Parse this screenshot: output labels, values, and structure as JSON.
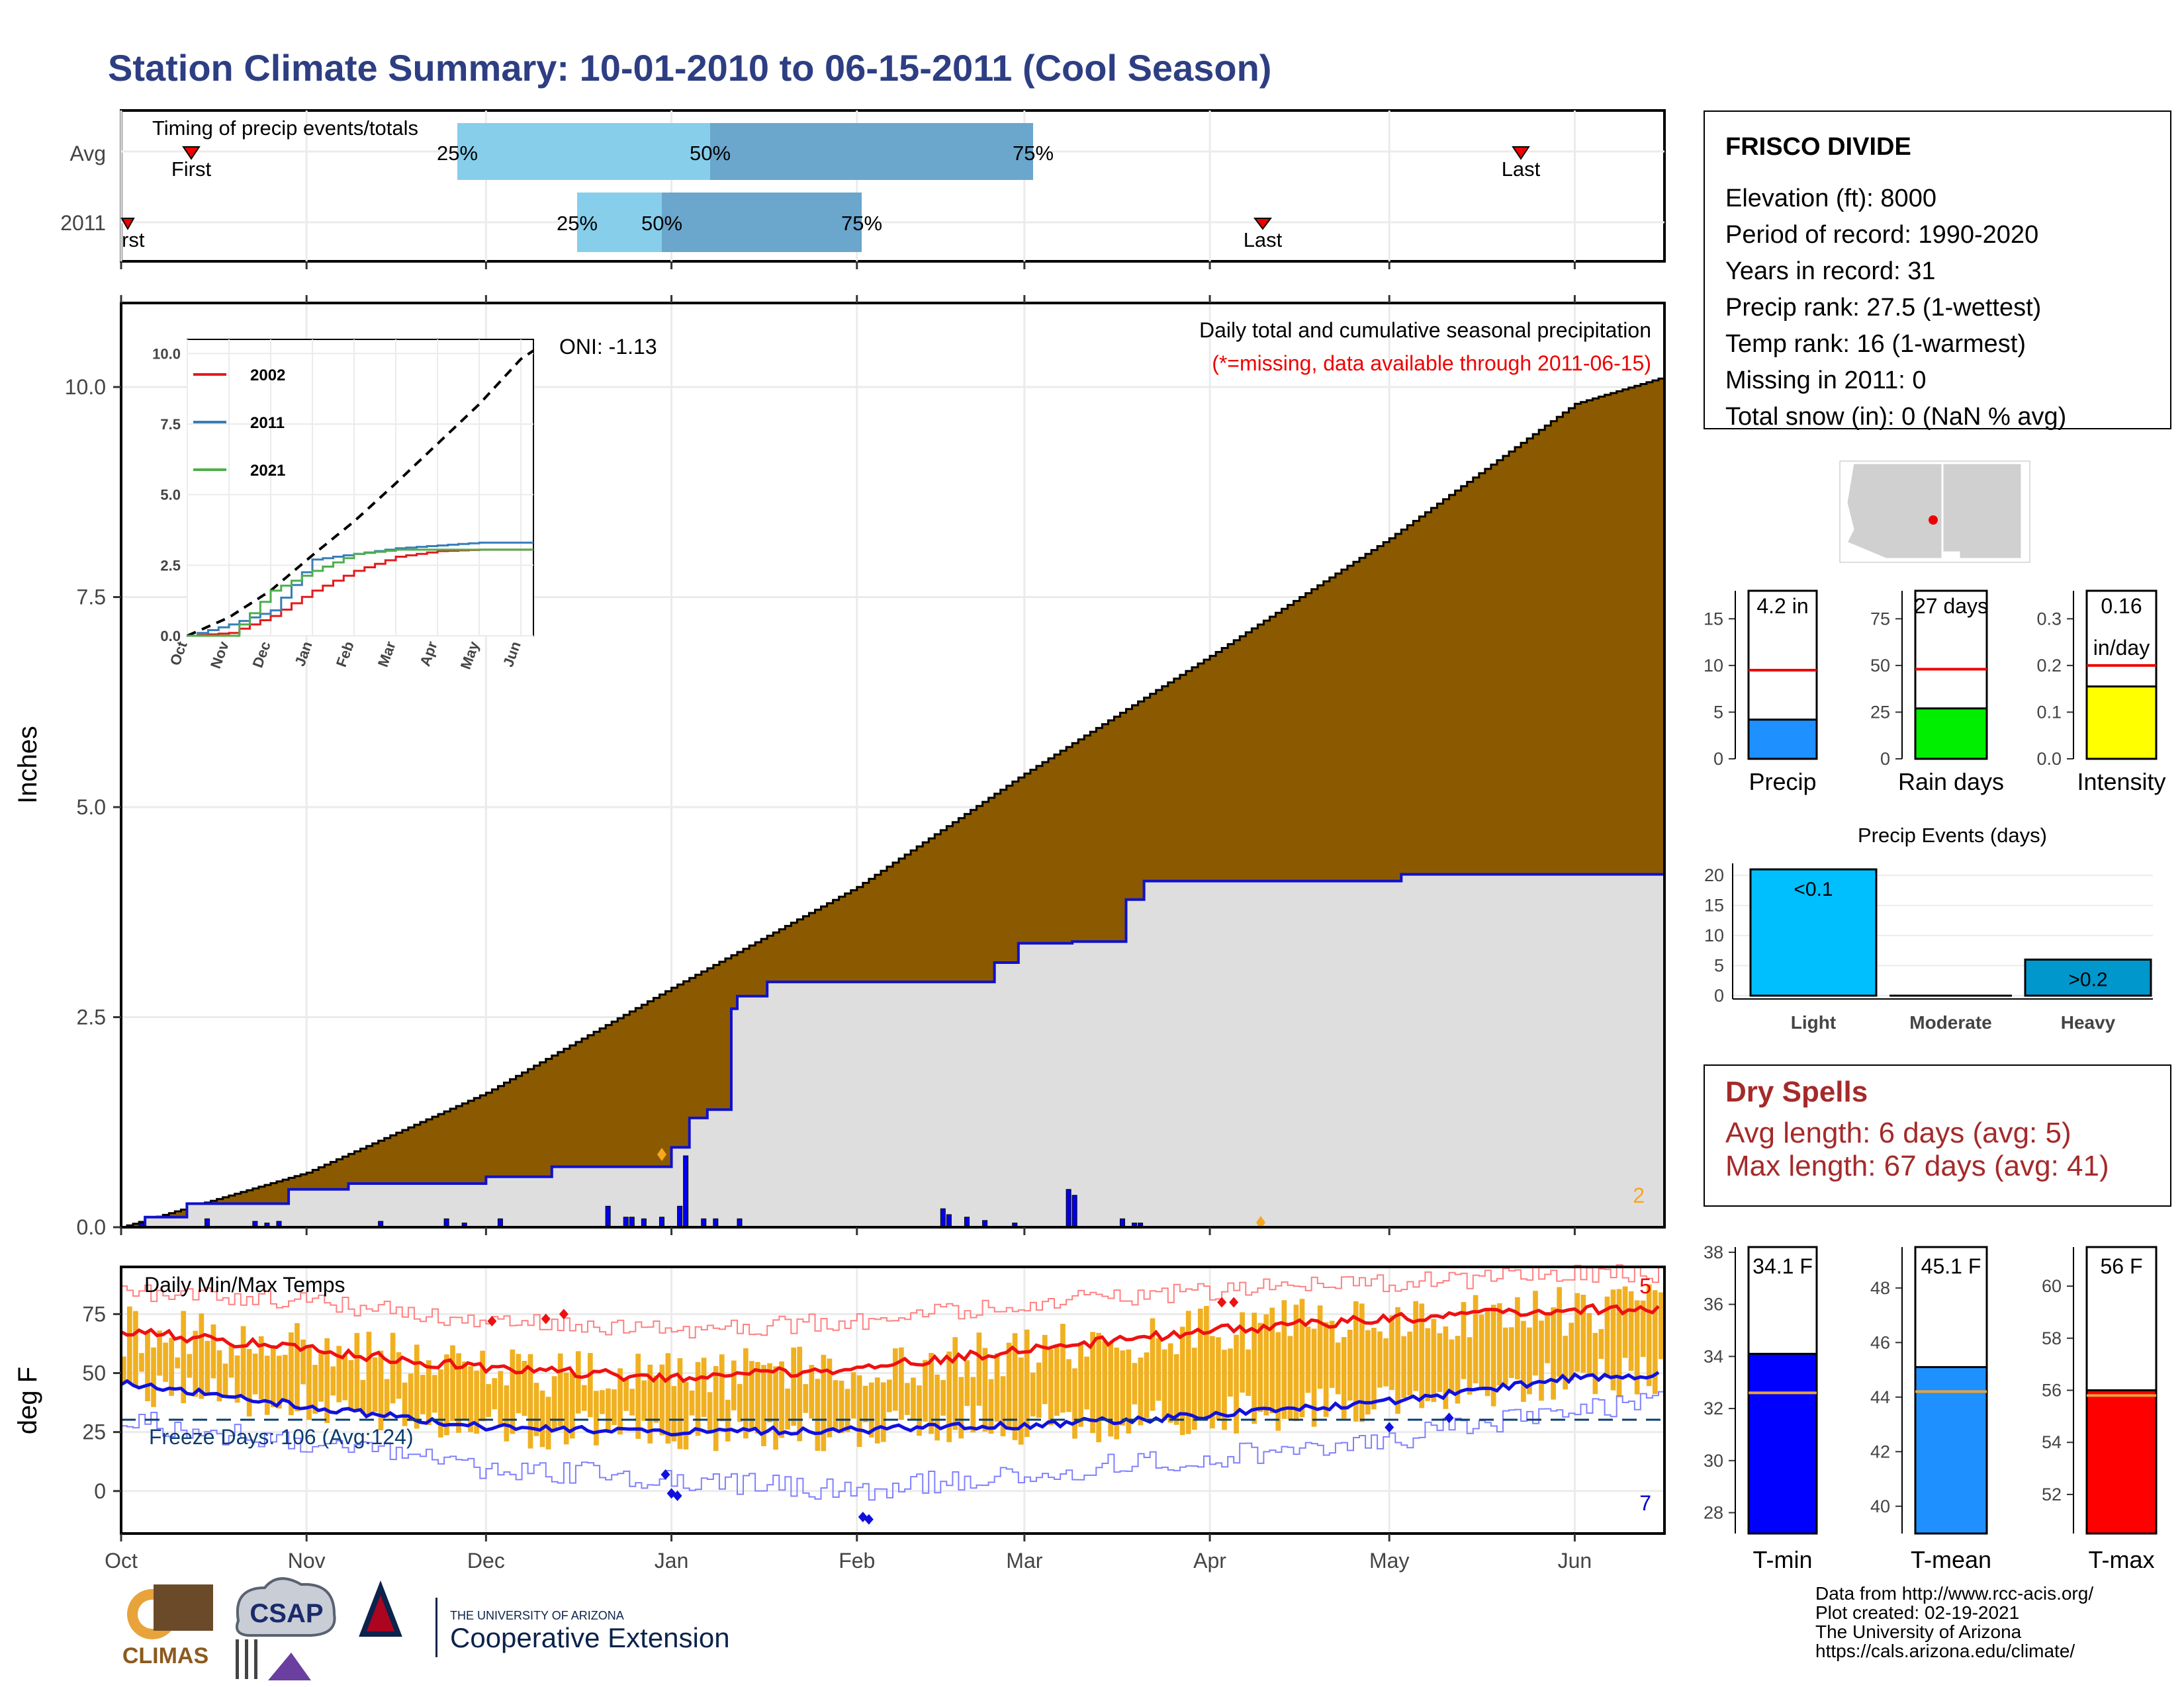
{
  "title": "Station Climate Summary: 10-01-2010 to 06-15-2011 (Cool Season)",
  "months": [
    "Oct",
    "Nov",
    "Dec",
    "Jan",
    "Feb",
    "Mar",
    "Apr",
    "May",
    "Jun"
  ],
  "timing": {
    "label": "Timing of precip events/totals",
    "rows": [
      "Avg",
      "2011"
    ],
    "avg": {
      "first": "First",
      "last": "Last",
      "q25": "25%",
      "q50": "50%",
      "q75": "75%"
    },
    "y2011": {
      "first": "rst",
      "last": "Last",
      "q25": "25%",
      "q50": "50%",
      "q75": "75%"
    }
  },
  "precip": {
    "ylabel": "Inches",
    "yticks": [
      "0.0",
      "2.5",
      "5.0",
      "7.5",
      "10.0"
    ],
    "oni": "ONI: -1.13",
    "note1": "Daily total and cumulative seasonal precipitation",
    "note2": "(*=missing, data available through 2011-06-15)",
    "count_label": "2",
    "colors": {
      "avg_fill": "#8B5A00",
      "obs_fill": "#DEDEDE",
      "obs_line": "#1010CC",
      "bars": "#0000EE",
      "marker": "#F5A623"
    }
  },
  "inset": {
    "yticks": [
      "0.0",
      "2.5",
      "5.0",
      "7.5",
      "10.0"
    ],
    "xticks": [
      "Oct",
      "Nov",
      "Dec",
      "Jan",
      "Feb",
      "Mar",
      "Apr",
      "May",
      "Jun"
    ],
    "legend": [
      {
        "label": "2002",
        "color": "#E41A1C"
      },
      {
        "label": "2011",
        "color": "#377EB8"
      },
      {
        "label": "2021",
        "color": "#4DAF4A"
      }
    ]
  },
  "temps": {
    "ylabel": "deg F",
    "title": "Daily Min/Max Temps",
    "yticks": [
      "0",
      "25",
      "50",
      "75"
    ],
    "freeze": "Freeze Days: 106 (Avg:124)",
    "record_high_count": "5",
    "record_low_count": "7",
    "colors": {
      "bars": "#F0B020",
      "tmax": "#EE1111",
      "tmin": "#1111DD"
    }
  },
  "station": {
    "name": "FRISCO DIVIDE",
    "lines": [
      "Elevation (ft): 8000",
      "Period of record: 1990-2020",
      "Years in record: 31",
      "Precip rank: 27.5 (1-wettest)",
      "Temp rank: 16 (1-warmest)",
      "Missing in 2011: 0",
      "Total snow (in): 0 (NaN % avg)"
    ]
  },
  "gauges": {
    "precip": {
      "value_label": "4.2 in",
      "name": "Precip",
      "yticks": [
        "0",
        "5",
        "10",
        "15"
      ],
      "value": 4.2,
      "avg": 9.5,
      "max": 18,
      "color": "#1E90FF"
    },
    "rain_days": {
      "value_label": "27 days",
      "name": "Rain days",
      "yticks": [
        "0",
        "25",
        "50",
        "75"
      ],
      "value": 27,
      "avg": 48,
      "max": 90,
      "color": "#00EE00"
    },
    "intensity": {
      "value_label": "0.16",
      "value_label2": "in/day",
      "name": "Intensity",
      "yticks": [
        "0.0",
        "0.1",
        "0.2",
        "0.3"
      ],
      "value": 0.155,
      "avg": 0.2,
      "max": 0.36,
      "color": "#FFFF00"
    }
  },
  "events": {
    "title": "Precip Events (days)",
    "yticks": [
      "0",
      "5",
      "10",
      "15",
      "20"
    ],
    "categories": [
      "Light",
      "Moderate",
      "Heavy"
    ],
    "labels": [
      "<0.1",
      "",
      ">0.2"
    ],
    "values": [
      21,
      0,
      6
    ],
    "colors": [
      "#00BFFF",
      "#00A0E0",
      "#0097CC"
    ]
  },
  "dry_spells": {
    "title": "Dry Spells",
    "avg": "Avg length: 6 days (avg: 5)",
    "max": "Max length: 67 days (avg: 41)"
  },
  "temp_gauges": {
    "tmin": {
      "value_label": "34.1 F",
      "name": "T-min",
      "yticks": [
        "28",
        "30",
        "32",
        "34",
        "36",
        "38"
      ],
      "value": 34.1,
      "avg": 32.6,
      "min": 27.2,
      "max": 38.2,
      "color": "#0000FF"
    },
    "tmean": {
      "value_label": "45.1 F",
      "name": "T-mean",
      "yticks": [
        "40",
        "42",
        "44",
        "46",
        "48"
      ],
      "value": 45.1,
      "avg": 44.2,
      "min": 39,
      "max": 49.5,
      "color": "#1E90FF"
    },
    "tmax": {
      "value_label": "56 F",
      "name": "T-max",
      "yticks": [
        "52",
        "54",
        "56",
        "58",
        "60"
      ],
      "value": 56,
      "avg": 55.8,
      "min": 50.5,
      "max": 61.5,
      "color": "#FF0000"
    }
  },
  "footer": {
    "lines": [
      "Data from http://www.rcc-acis.org/",
      "Plot created: 02-19-2021",
      "The University of Arizona",
      "https://cals.arizona.edu/climate/"
    ],
    "climas": "CLIMAS",
    "csap": "CSAP",
    "ua_small": "THE UNIVERSITY OF ARIZONA",
    "ua_big": "Cooperative Extension"
  },
  "chart_data": [
    {
      "type": "area",
      "title": "Daily total and cumulative seasonal precipitation",
      "ylabel": "Inches",
      "x": [
        "Oct",
        "Nov",
        "Dec",
        "Jan",
        "Feb",
        "Mar",
        "Apr",
        "May",
        "Jun",
        "Jun 15"
      ],
      "ylim": [
        0,
        11
      ],
      "series": [
        {
          "name": "Average cumulative",
          "values": [
            0,
            0.65,
            1.6,
            2.85,
            4.05,
            5.4,
            6.8,
            8.2,
            9.8,
            10.1
          ]
        },
        {
          "name": "2011 cumulative",
          "values": [
            0,
            0.55,
            0.95,
            2.75,
            2.95,
            3.2,
            4.15,
            4.2,
            4.2,
            4.2
          ]
        }
      ]
    },
    {
      "type": "line",
      "ylim": [
        0,
        10
      ],
      "x": [
        "Oct",
        "Nov",
        "Dec",
        "Jan",
        "Feb",
        "Mar",
        "Apr",
        "May",
        "Jun"
      ],
      "series": [
        {
          "name": "2002",
          "values": [
            0,
            0.1,
            0.7,
            1.6,
            2.3,
            2.8,
            3.0,
            3.05,
            3.05
          ]
        },
        {
          "name": "2011",
          "values": [
            0,
            0.4,
            0.9,
            2.7,
            2.9,
            3.1,
            3.2,
            3.3,
            3.3
          ]
        },
        {
          "name": "2021",
          "values": [
            0,
            0,
            1.6,
            2.3,
            2.9,
            3.05,
            3.05,
            3.05,
            3.05
          ]
        }
      ]
    },
    {
      "type": "line",
      "title": "Daily Min/Max Temps",
      "ylabel": "deg F",
      "x": [
        "Oct",
        "Nov",
        "Dec",
        "Jan",
        "Feb",
        "Mar",
        "Apr",
        "May",
        "Jun",
        "Jun 15"
      ],
      "ylim": [
        -15,
        95
      ],
      "series": [
        {
          "name": "Avg max",
          "values": [
            68,
            60,
            52,
            48,
            52,
            60,
            68,
            73,
            77,
            77
          ]
        },
        {
          "name": "Avg min",
          "values": [
            46,
            36,
            27,
            25,
            26,
            28,
            32,
            38,
            48,
            49
          ]
        },
        {
          "name": "Record max",
          "values": [
            85,
            80,
            72,
            68,
            72,
            80,
            85,
            88,
            92,
            92
          ]
        },
        {
          "name": "Record min",
          "values": [
            30,
            20,
            10,
            5,
            0,
            8,
            14,
            22,
            35,
            38
          ]
        }
      ]
    },
    {
      "type": "bar",
      "title": "Precip Events (days)",
      "categories": [
        "Light",
        "Moderate",
        "Heavy"
      ],
      "values": [
        21,
        0,
        6
      ]
    }
  ]
}
